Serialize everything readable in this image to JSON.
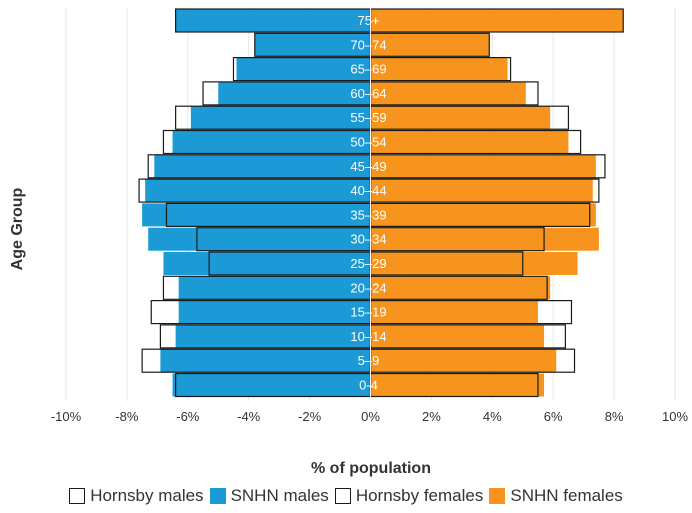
{
  "chart_data": {
    "type": "bar",
    "orientation": "horizontal-population-pyramid",
    "xlabel": "% of population",
    "ylabel": "Age Group",
    "xlim": [
      -10,
      10
    ],
    "x_ticks": [
      "-10%",
      "-8%",
      "-6%",
      "-4%",
      "-2%",
      "0%",
      "2%",
      "4%",
      "6%",
      "8%",
      "10%"
    ],
    "grid": "vertical",
    "categories": [
      "75+",
      "70–74",
      "65–69",
      "60–64",
      "55–59",
      "50–54",
      "45–49",
      "40–44",
      "35–39",
      "30–34",
      "25–29",
      "20–24",
      "15–19",
      "10–14",
      "5–9",
      "0-4"
    ],
    "series": [
      {
        "name": "Hornsby males",
        "style": "outline",
        "color": "#1a1a1a",
        "values": [
          -6.4,
          -3.8,
          -4.5,
          -5.5,
          -6.4,
          -6.8,
          -7.3,
          -7.6,
          -6.7,
          -5.7,
          -5.3,
          -6.8,
          -7.2,
          -6.9,
          -7.5,
          -6.4
        ]
      },
      {
        "name": "SNHN males",
        "style": "fill",
        "color": "#1b9ad6",
        "values": [
          -6.4,
          -3.8,
          -4.4,
          -5.0,
          -5.9,
          -6.5,
          -7.1,
          -7.4,
          -7.5,
          -7.3,
          -6.8,
          -6.3,
          -6.3,
          -6.4,
          -6.9,
          -6.5
        ]
      },
      {
        "name": "Hornsby females",
        "style": "outline",
        "color": "#1a1a1a",
        "values": [
          8.3,
          3.9,
          4.6,
          5.5,
          6.5,
          6.9,
          7.7,
          7.5,
          7.2,
          5.7,
          5.0,
          5.8,
          6.6,
          6.4,
          6.7,
          5.5
        ]
      },
      {
        "name": "SNHN females",
        "style": "fill",
        "color": "#f7941d",
        "values": [
          8.3,
          3.9,
          4.5,
          5.1,
          5.9,
          6.5,
          7.4,
          7.3,
          7.4,
          7.5,
          6.8,
          5.9,
          5.5,
          5.7,
          6.1,
          5.7
        ]
      }
    ]
  },
  "legend": [
    {
      "label": "Hornsby males",
      "style": "outline",
      "color": "#ffffff"
    },
    {
      "label": "SNHN males",
      "style": "fill",
      "color": "#1b9ad6"
    },
    {
      "label": "Hornsby females",
      "style": "outline",
      "color": "#ffffff"
    },
    {
      "label": "SNHN females",
      "style": "fill",
      "color": "#f7941d"
    }
  ]
}
